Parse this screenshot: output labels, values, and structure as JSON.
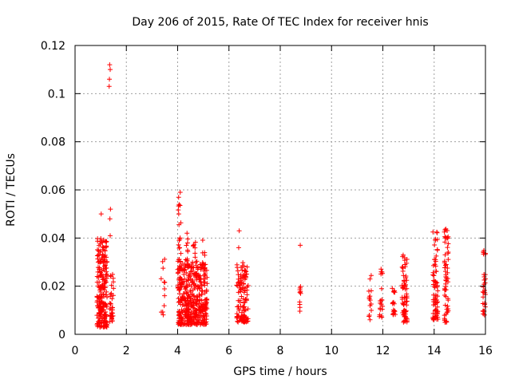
{
  "chart_data": {
    "type": "scatter",
    "title": "Day 206 of 2015, Rate Of TEC Index for receiver hnis",
    "xlabel": "GPS time / hours",
    "ylabel": "ROTI / TECUs",
    "xlim": [
      0,
      16
    ],
    "ylim": [
      0,
      0.12
    ],
    "xticks": [
      0,
      2,
      4,
      6,
      8,
      10,
      12,
      14,
      16
    ],
    "yticks": [
      0,
      0.02,
      0.04,
      0.06,
      0.08,
      0.1,
      0.12
    ],
    "xtick_labels": [
      "0",
      "2",
      "4",
      "6",
      "8",
      "10",
      "12",
      "14",
      "16"
    ],
    "ytick_labels": [
      "0",
      "0.02",
      "0.04",
      "0.06",
      "0.08",
      "0.1",
      "0.12"
    ],
    "grid": true,
    "marker": "+",
    "marker_color": "#ff0000",
    "clusters": [
      {
        "x_from": 0.85,
        "x_to": 1.25,
        "y_from": 0.003,
        "y_to": 0.04,
        "count": 220
      },
      {
        "x_from": 1.35,
        "x_to": 1.5,
        "y_from": 0.005,
        "y_to": 0.025,
        "count": 35
      },
      {
        "x_from": 3.35,
        "x_to": 3.5,
        "y_from": 0.008,
        "y_to": 0.032,
        "count": 12
      },
      {
        "x_from": 4.0,
        "x_to": 5.15,
        "y_from": 0.004,
        "y_to": 0.03,
        "count": 420
      },
      {
        "x_from": 4.0,
        "x_to": 4.15,
        "y_from": 0.03,
        "y_to": 0.059,
        "count": 20
      },
      {
        "x_from": 4.3,
        "x_to": 4.45,
        "y_from": 0.028,
        "y_to": 0.045,
        "count": 14
      },
      {
        "x_from": 4.6,
        "x_to": 4.75,
        "y_from": 0.025,
        "y_to": 0.04,
        "count": 12
      },
      {
        "x_from": 4.95,
        "x_to": 5.1,
        "y_from": 0.025,
        "y_to": 0.04,
        "count": 10
      },
      {
        "x_from": 6.3,
        "x_to": 6.75,
        "y_from": 0.005,
        "y_to": 0.03,
        "count": 120
      },
      {
        "x_from": 8.75,
        "x_to": 8.8,
        "y_from": 0.008,
        "y_to": 0.02,
        "count": 10
      },
      {
        "x_from": 11.45,
        "x_to": 11.55,
        "y_from": 0.006,
        "y_to": 0.025,
        "count": 14
      },
      {
        "x_from": 11.85,
        "x_to": 12.0,
        "y_from": 0.006,
        "y_to": 0.028,
        "count": 20
      },
      {
        "x_from": 12.35,
        "x_to": 12.5,
        "y_from": 0.008,
        "y_to": 0.02,
        "count": 18
      },
      {
        "x_from": 12.75,
        "x_to": 12.95,
        "y_from": 0.005,
        "y_to": 0.033,
        "count": 70
      },
      {
        "x_from": 13.95,
        "x_to": 14.15,
        "y_from": 0.006,
        "y_to": 0.043,
        "count": 70
      },
      {
        "x_from": 14.4,
        "x_to": 14.55,
        "y_from": 0.005,
        "y_to": 0.044,
        "count": 60
      },
      {
        "x_from": 15.9,
        "x_to": 16.0,
        "y_from": 0.008,
        "y_to": 0.035,
        "count": 30
      }
    ],
    "outliers": [
      {
        "x": 1.35,
        "y": 0.112
      },
      {
        "x": 1.37,
        "y": 0.11
      },
      {
        "x": 1.34,
        "y": 0.106
      },
      {
        "x": 1.33,
        "y": 0.103
      },
      {
        "x": 1.38,
        "y": 0.052
      },
      {
        "x": 1.36,
        "y": 0.048
      },
      {
        "x": 1.02,
        "y": 0.05
      },
      {
        "x": 1.37,
        "y": 0.041
      },
      {
        "x": 6.4,
        "y": 0.043
      },
      {
        "x": 6.38,
        "y": 0.036
      },
      {
        "x": 8.78,
        "y": 0.037
      },
      {
        "x": 4.1,
        "y": 0.059
      }
    ]
  }
}
